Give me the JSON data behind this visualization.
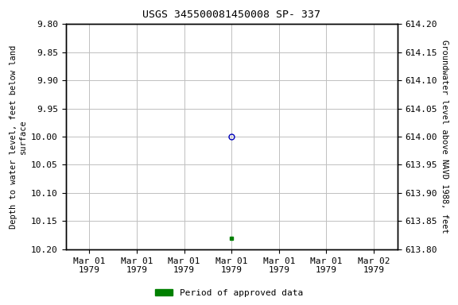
{
  "title": "USGS 345500081450008 SP- 337",
  "ylabel_left": "Depth to water level, feet below land\nsurface",
  "ylabel_right": "Groundwater level above NAVD 1988, feet",
  "ylim_left_top": 9.8,
  "ylim_left_bottom": 10.2,
  "ylim_right_top": 614.2,
  "ylim_right_bottom": 613.8,
  "yticks_left": [
    9.8,
    9.85,
    9.9,
    9.95,
    10.0,
    10.05,
    10.1,
    10.15,
    10.2
  ],
  "ytick_labels_left": [
    "9.80",
    "9.85",
    "9.90",
    "9.95",
    "10.00",
    "10.05",
    "10.10",
    "10.15",
    "10.20"
  ],
  "yticks_right": [
    614.2,
    614.15,
    614.1,
    614.05,
    614.0,
    613.95,
    613.9,
    613.85,
    613.8
  ],
  "ytick_labels_right": [
    "614.20",
    "614.15",
    "614.10",
    "614.05",
    "614.00",
    "613.95",
    "613.90",
    "613.85",
    "613.80"
  ],
  "xtick_positions": [
    0,
    1,
    2,
    3,
    4,
    5,
    6
  ],
  "xtick_labels": [
    "Mar 01\n1979",
    "Mar 01\n1979",
    "Mar 01\n1979",
    "Mar 01\n1979",
    "Mar 01\n1979",
    "Mar 01\n1979",
    "Mar 02\n1979"
  ],
  "xlim": [
    -0.5,
    6.5
  ],
  "data_point_open": {
    "x": 3,
    "depth": 10.0,
    "color": "#0000bb",
    "marker": "o",
    "size": 5
  },
  "data_point_filled": {
    "x": 3,
    "depth": 10.18,
    "color": "#008000",
    "marker": "s",
    "size": 3
  },
  "legend_label": "Period of approved data",
  "legend_color": "#008000",
  "background_color": "#ffffff",
  "grid_color": "#c0c0c0",
  "title_fontsize": 9.5,
  "axis_label_fontsize": 7.5,
  "tick_fontsize": 8
}
